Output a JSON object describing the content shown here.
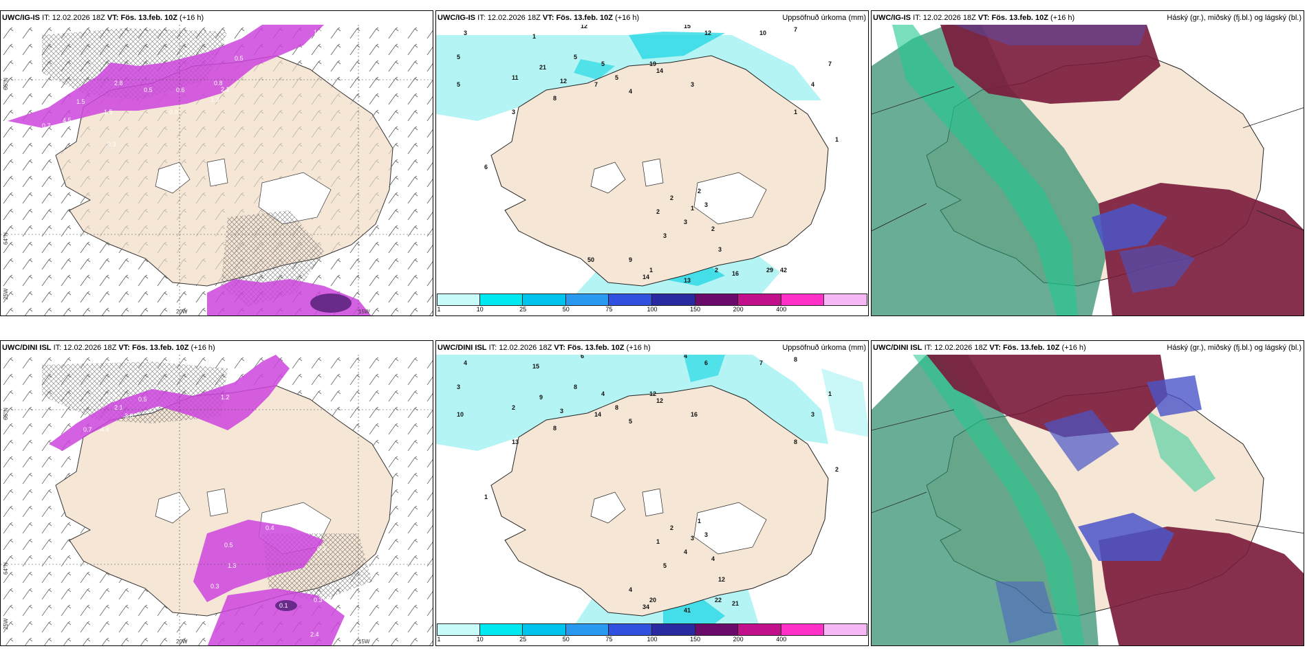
{
  "colors": {
    "land": "#f5e6d6",
    "ice": "#ffffff",
    "precip_light": "#b4f4f4",
    "precip_mid": "#27d8e4",
    "conv_purple": "#cc44dd",
    "high_cloud": "#7a1a3a",
    "mid_cloud": "#4a55c8",
    "low_cloud": "#2a8a6a"
  },
  "panels": [
    {
      "model": "UWC/IG-IS",
      "it_label": "IT:",
      "it": "12.02.2026 18Z",
      "vt_label": "VT:",
      "vt": "Fös. 13.feb. 10Z",
      "lead": "(+16 h)",
      "right_title": ""
    },
    {
      "model": "UWC/IG-IS",
      "it_label": "IT:",
      "it": "12.02.2026 18Z",
      "vt_label": "VT:",
      "vt": "Fös. 13.feb. 10Z",
      "lead": "(+16 h)",
      "right_title": "Uppsöfnuð úrkoma (mm)"
    },
    {
      "model": "UWC/IG-IS",
      "it_label": "IT:",
      "it": "12.02.2026 18Z",
      "vt_label": "VT:",
      "vt": "Fös. 13.feb. 10Z",
      "lead": "(+16 h)",
      "right_title": "Háský (gr.), miðský (fj.bl.) og lágský (bl.)"
    },
    {
      "model": "UWC/DINI ISL",
      "it_label": "IT:",
      "it": "12.02.2026 18Z",
      "vt_label": "VT:",
      "vt": "Fös. 13.feb. 10Z",
      "lead": "(+16 h)",
      "right_title": ""
    },
    {
      "model": "UWC/DINI ISL",
      "it_label": "IT:",
      "it": "12.02.2026 18Z",
      "vt_label": "VT:",
      "vt": "Fös. 13.feb. 10Z",
      "lead": "(+16 h)",
      "right_title": "Uppsöfnuð úrkoma (mm)"
    },
    {
      "model": "UWC/DINI ISL",
      "it_label": "IT:",
      "it": "12.02.2026 18Z",
      "vt_label": "VT:",
      "vt": "Fös. 13.feb. 10Z",
      "lead": "(+16 h)",
      "right_title": "Háský (gr.), miðský (fj.bl.) og lágský (bl.)"
    }
  ],
  "colorbar": {
    "labels": [
      "1",
      "10",
      "25",
      "50",
      "75",
      "100",
      "150",
      "200",
      "400"
    ],
    "colors": [
      "#c8fafa",
      "#00e8f0",
      "#00c4ec",
      "#2a9af0",
      "#3050e0",
      "#2a2aa0",
      "#6a0a6a",
      "#c0108a",
      "#ff30c8",
      "#f6b8f4"
    ]
  },
  "map_labels": {
    "lat_66": "66°N",
    "lat_64": "64°N",
    "lon_25w": "25W",
    "lon_20w": "20W",
    "lon_15w": "15W"
  },
  "precip_top": [
    "3",
    "5",
    "12",
    "15",
    "12",
    "10",
    "7",
    "5",
    "1",
    "5",
    "21",
    "11",
    "12",
    "5",
    "5",
    "7",
    "14",
    "19",
    "3",
    "4",
    "8",
    "3",
    "7",
    "4",
    "1",
    "1",
    "6",
    "2",
    "3",
    "2",
    "1",
    "2",
    "3",
    "3",
    "2",
    "3",
    "1",
    "9",
    "13",
    "14",
    "2",
    "16",
    "29",
    "42",
    "50"
  ],
  "precip_bottom": [
    "4",
    "3",
    "6",
    "4",
    "6",
    "7",
    "8",
    "10",
    "15",
    "8",
    "9",
    "2",
    "3",
    "4",
    "8",
    "14",
    "12",
    "12",
    "16",
    "5",
    "8",
    "13",
    "1",
    "3",
    "8",
    "2",
    "1",
    "1",
    "3",
    "2",
    "3",
    "1",
    "4",
    "5",
    "4",
    "12",
    "20",
    "4",
    "41",
    "34",
    "22",
    "21"
  ],
  "precip_vals_top": [
    "1.8",
    "3.7",
    "0.5",
    "2.8",
    "0.8",
    "1.5",
    "0.5",
    "0.6",
    "1.3",
    "2.1",
    "0.3",
    "0.9",
    "0.7",
    "4.5",
    "1.5"
  ],
  "precip_vals_bottom": [
    "1.3",
    "2.1",
    "3.8",
    "0.5",
    "0.7",
    "4.4",
    "1.2",
    "0.4",
    "0.3",
    "0.5",
    "1.3",
    "0.3",
    "0.1",
    "0.3",
    "2.4"
  ]
}
